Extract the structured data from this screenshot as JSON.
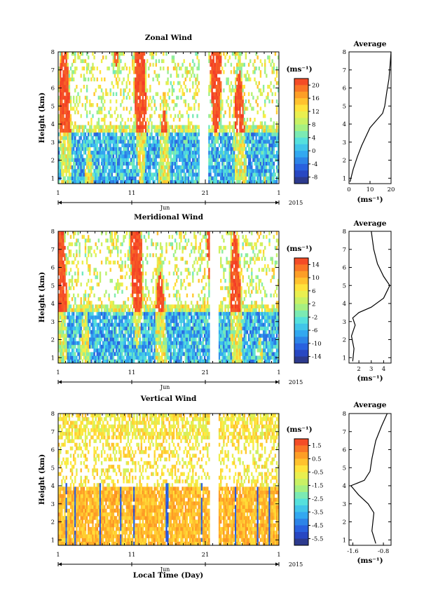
{
  "figure": {
    "xlabel": "Local Time (Day)",
    "month_label": "Jun",
    "year_label": "2015"
  },
  "chart_data": [
    {
      "type": "heatmap",
      "title": "Zonal Wind",
      "ylabel": "Height (km)",
      "xlabel": "Local Time (Day)",
      "x_ticklabels": [
        "1",
        "11",
        "21",
        "1"
      ],
      "xlim_days": [
        1,
        31
      ],
      "y_ticks": [
        1,
        2,
        3,
        4,
        5,
        6,
        7,
        8
      ],
      "ylim": [
        0.7,
        8
      ],
      "colorbar": {
        "unit": "(ms⁻¹)",
        "labels": [
          "20",
          "16",
          "12",
          "8",
          "4",
          "0",
          "-4",
          "-8"
        ],
        "range": [
          -10,
          22
        ]
      },
      "average_profile": {
        "title": "Average",
        "xlabel": "(ms⁻¹)",
        "x_ticks": [
          "0",
          "10",
          "20"
        ],
        "xlim": [
          0,
          20
        ],
        "points": [
          [
            0.5,
            0.8
          ],
          [
            2,
            1.5
          ],
          [
            4,
            2.2
          ],
          [
            6,
            2.8
          ],
          [
            8,
            3.3
          ],
          [
            10,
            3.8
          ],
          [
            13,
            4.2
          ],
          [
            16,
            4.6
          ],
          [
            17,
            5.0
          ],
          [
            18,
            5.8
          ],
          [
            19,
            6.5
          ],
          [
            19.5,
            7.2
          ],
          [
            20,
            8.0
          ]
        ]
      }
    },
    {
      "type": "heatmap",
      "title": "Meridional Wind",
      "ylabel": "Height (km)",
      "x_ticklabels": [
        "1",
        "11",
        "21",
        "1"
      ],
      "xlim_days": [
        1,
        31
      ],
      "y_ticks": [
        1,
        2,
        3,
        4,
        5,
        6,
        7,
        8
      ],
      "ylim": [
        0.7,
        8
      ],
      "colorbar": {
        "unit": "(ms⁻¹)",
        "labels": [
          "14",
          "10",
          "6",
          "2",
          "-2",
          "-6",
          "-10",
          "-14"
        ],
        "range": [
          -16,
          16
        ]
      },
      "average_profile": {
        "title": "Average",
        "xlabel": "(ms⁻¹)",
        "x_ticks": [
          "2",
          "3",
          "4"
        ],
        "xlim": [
          1.2,
          4.6
        ],
        "points": [
          [
            1.5,
            0.8
          ],
          [
            1.6,
            1.5
          ],
          [
            1.4,
            2.2
          ],
          [
            1.7,
            2.8
          ],
          [
            1.5,
            3.2
          ],
          [
            2.0,
            3.5
          ],
          [
            3.0,
            3.8
          ],
          [
            4.0,
            4.3
          ],
          [
            4.5,
            5.0
          ],
          [
            4.0,
            5.5
          ],
          [
            3.5,
            6.2
          ],
          [
            3.2,
            7.0
          ],
          [
            3.0,
            8.0
          ]
        ]
      }
    },
    {
      "type": "heatmap",
      "title": "Vertical Wind",
      "ylabel": "Height (km)",
      "x_ticklabels": [
        "1",
        "11",
        "21",
        "1"
      ],
      "xlim_days": [
        1,
        31
      ],
      "y_ticks": [
        1,
        2,
        3,
        4,
        5,
        6,
        7,
        8
      ],
      "ylim": [
        0.7,
        8
      ],
      "colorbar": {
        "unit": "(ms⁻¹)",
        "labels": [
          "1.5",
          "0.5",
          "-0.5",
          "-1.5",
          "-2.5",
          "-3.5",
          "-4.5",
          "-5.5"
        ],
        "range": [
          -6,
          2
        ]
      },
      "average_profile": {
        "title": "Average",
        "xlabel": "(ms⁻¹)",
        "x_ticks": [
          "-1.6",
          "-0.8"
        ],
        "xlim": [
          -1.7,
          -0.6
        ],
        "points": [
          [
            -1.0,
            0.8
          ],
          [
            -1.1,
            1.5
          ],
          [
            -1.05,
            2.5
          ],
          [
            -1.2,
            3.0
          ],
          [
            -1.45,
            3.5
          ],
          [
            -1.65,
            4.0
          ],
          [
            -1.3,
            4.3
          ],
          [
            -1.15,
            4.8
          ],
          [
            -1.1,
            5.5
          ],
          [
            -1.0,
            6.5
          ],
          [
            -0.85,
            7.3
          ],
          [
            -0.7,
            8.0
          ]
        ]
      }
    }
  ]
}
